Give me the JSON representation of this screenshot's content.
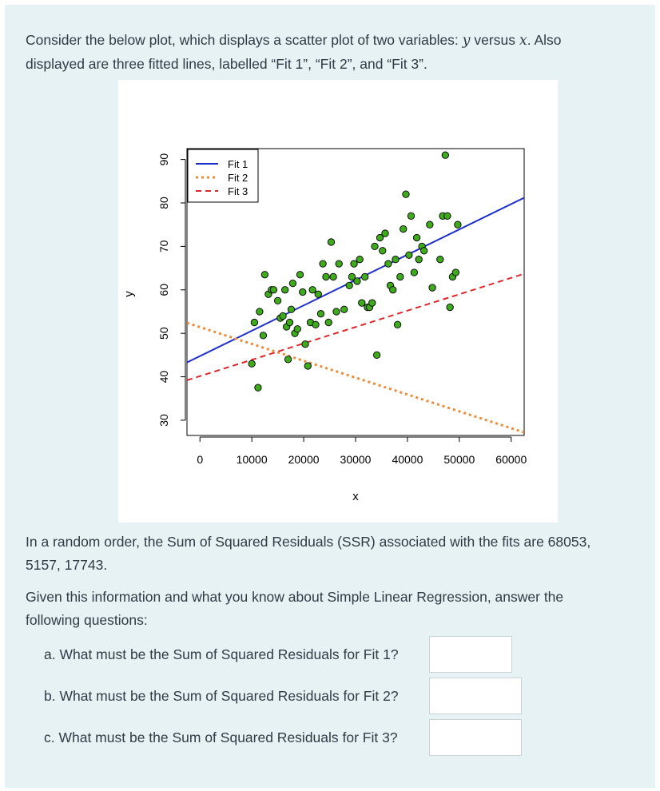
{
  "intro": {
    "line1_part1": "Consider the below plot, which displays a scatter plot of two variables: ",
    "y_var": "y",
    "line1_part2": " versus ",
    "x_var": "x",
    "line1_part3": ". Also",
    "line2": "displayed are three fitted lines, labelled “Fit 1”, “Fit 2”, and “Fit 3”."
  },
  "ssr_info": {
    "line1": "In a random order, the Sum of Squared Residuals (SSR) associated with the fits are 68053,",
    "line2": "5157, 17743."
  },
  "given": {
    "line1": "Given this information and what you know about Simple Linear Regression, answer the",
    "line2": "following questions:"
  },
  "questions": [
    {
      "label": "a. What must be the Sum of Squared Residuals for Fit 1?",
      "value": ""
    },
    {
      "label": "b. What must be the Sum of Squared Residuals for Fit 2?",
      "value": ""
    },
    {
      "label": "c. What must be the Sum of Squared Residuals for Fit 3?",
      "value": ""
    }
  ],
  "colors": {
    "panel_bg": "#e7f2f4",
    "point_fill": "#3faa1c",
    "fit1": "#1f2fcc",
    "fit2": "#f08a35",
    "fit3": "#e0262b"
  },
  "chart_data": {
    "type": "scatter",
    "xlabel": "x",
    "ylabel": "y",
    "xlim": [
      -2500,
      62500
    ],
    "ylim": [
      26.5,
      92.5
    ],
    "xticks": [
      0,
      10000,
      20000,
      30000,
      40000,
      50000,
      60000
    ],
    "xtick_labels": [
      "0",
      "10000",
      "20000",
      "30000",
      "40000",
      "50000",
      "60000"
    ],
    "yticks": [
      30,
      40,
      50,
      60,
      70,
      80,
      90
    ],
    "ytick_labels": [
      "30",
      "40",
      "50",
      "60",
      "70",
      "80",
      "90"
    ],
    "legend_position": "top-left",
    "grid": false,
    "points": {
      "x": [
        10000,
        10500,
        11200,
        11500,
        12200,
        12500,
        13200,
        13800,
        14200,
        15000,
        15500,
        16000,
        16400,
        16700,
        17000,
        17300,
        17600,
        17900,
        18300,
        18800,
        19300,
        19800,
        20300,
        20800,
        21300,
        21700,
        22300,
        22800,
        23300,
        23700,
        24300,
        24800,
        25300,
        25700,
        26300,
        26800,
        27800,
        28800,
        29300,
        29700,
        30300,
        30800,
        31200,
        31800,
        32300,
        32700,
        33200,
        33700,
        34100,
        34700,
        35200,
        35700,
        36300,
        36700,
        37200,
        37700,
        38100,
        38600,
        39200,
        39700,
        40300,
        40700,
        41300,
        41800,
        42200,
        42800,
        43200,
        44300,
        44800,
        46300,
        46800,
        47300,
        47700,
        48200,
        48700,
        49300,
        49700
      ],
      "y": [
        43,
        52.5,
        37.5,
        55,
        49.5,
        63.5,
        59,
        60,
        60,
        57.5,
        53.5,
        54,
        60,
        51.5,
        44,
        52.5,
        55.5,
        61.5,
        50,
        51,
        63.5,
        59.5,
        47.5,
        42.5,
        52.5,
        60,
        52,
        59,
        54.5,
        66,
        63,
        52.5,
        71,
        63,
        55,
        66,
        55.5,
        61,
        63,
        66,
        62,
        67,
        57,
        63,
        56,
        56,
        57,
        70,
        45,
        72,
        69,
        73,
        66,
        61,
        60,
        67,
        52,
        63,
        74,
        82,
        68,
        77,
        64,
        72,
        67,
        70,
        69,
        75,
        60.5,
        67,
        77,
        91,
        77,
        56,
        63,
        64,
        75
      ]
    },
    "series": [
      {
        "name": "Fit 1",
        "style": "solid",
        "x": [
          -2500,
          62500
        ],
        "y": [
          43.3,
          81.2
        ]
      },
      {
        "name": "Fit 2",
        "style": "dotted",
        "x": [
          -2500,
          62500
        ],
        "y": [
          52.4,
          27.2
        ]
      },
      {
        "name": "Fit 3",
        "style": "dashed",
        "x": [
          -2500,
          62500
        ],
        "y": [
          39.2,
          63.7
        ]
      }
    ]
  }
}
